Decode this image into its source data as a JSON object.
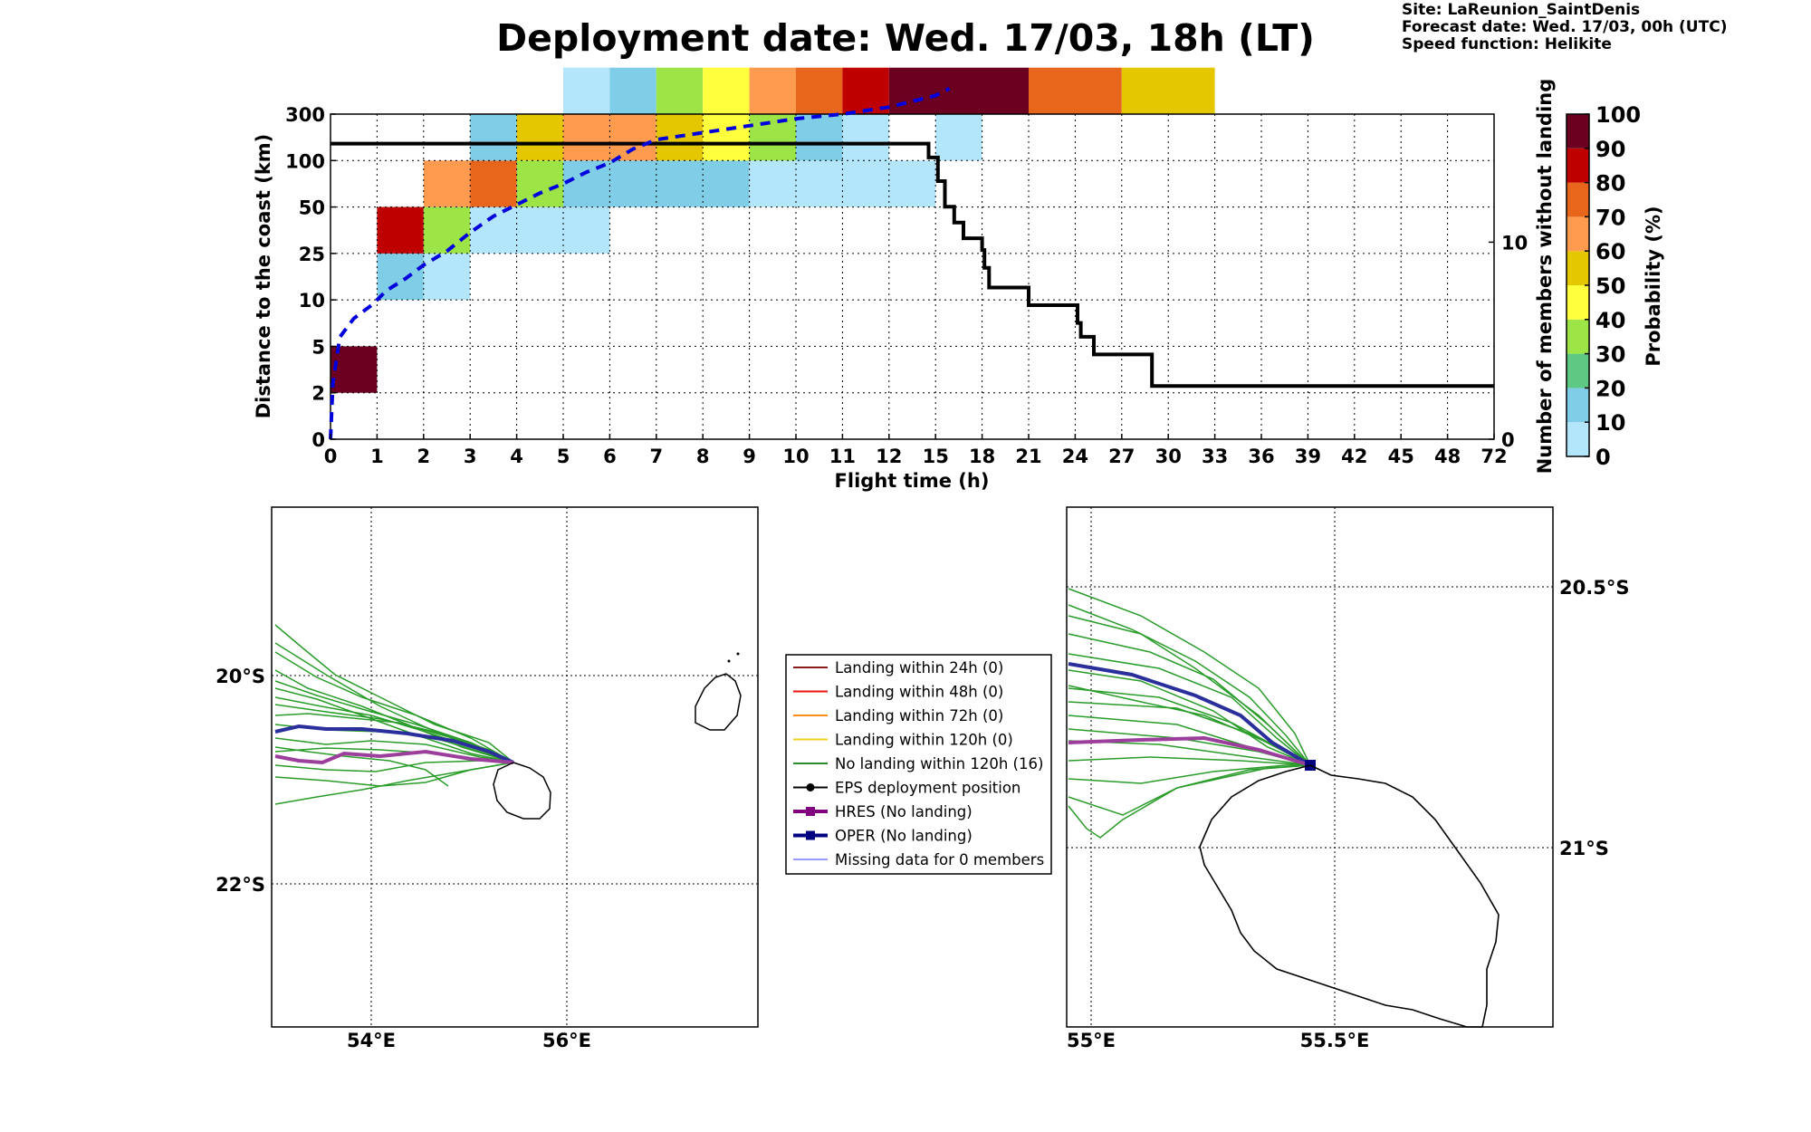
{
  "header": {
    "title": "Deployment date: Wed. 17/03, 18h (LT)",
    "meta": [
      "Site: LaReunion_SaintDenis",
      "Forecast date: Wed. 17/03, 00h (UTC)",
      "Speed function: Helikite"
    ]
  },
  "chart_data": [
    {
      "type": "heatmap",
      "xlabel": "Flight time (h)",
      "ylabel": "Distance to the coast (km)",
      "ylabel_right": "Number of members without landing",
      "colorbar_label": "Probability (%)",
      "x_ticks": [
        "0",
        "1",
        "2",
        "3",
        "4",
        "5",
        "6",
        "7",
        "8",
        "9",
        "10",
        "11",
        "12",
        "15",
        "18",
        "21",
        "24",
        "27",
        "30",
        "33",
        "36",
        "39",
        "42",
        "45",
        "48",
        "72"
      ],
      "y_ticks": [
        "0",
        "2",
        "5",
        "10",
        "25",
        "50",
        "100",
        "300"
      ],
      "right_ticks": [
        {
          "label": "0",
          "value": 0
        },
        {
          "label": "10",
          "value": 10
        }
      ],
      "right_ylim": [
        0,
        16.5
      ],
      "colorbar_ticks": [
        "0",
        "10",
        "20",
        "30",
        "40",
        "50",
        "60",
        "70",
        "80",
        "90",
        "100"
      ],
      "colorbar_colors": [
        "#b3e5fb",
        "#7fcde6",
        "#5dc982",
        "#9de447",
        "#ffff3d",
        "#e5c700",
        "#ff9b4f",
        "#e8661c",
        "#be0000",
        "#6b0020"
      ],
      "grid": true,
      "cells": [
        {
          "x": 0,
          "y": 1,
          "w": 1,
          "color": "#6b0020"
        },
        {
          "x": 1,
          "y": 3,
          "w": 1,
          "color": "#7fcde6"
        },
        {
          "x": 1,
          "y": 4,
          "w": 1,
          "color": "#be0000"
        },
        {
          "x": 2,
          "y": 3,
          "w": 1,
          "color": "#b3e5fb"
        },
        {
          "x": 2,
          "y": 4,
          "w": 1,
          "color": "#9de447"
        },
        {
          "x": 2,
          "y": 5,
          "w": 1,
          "color": "#ff9b4f"
        },
        {
          "x": 3,
          "y": 4,
          "w": 3,
          "color": "#b3e5fb"
        },
        {
          "x": 3,
          "y": 5,
          "w": 1,
          "color": "#e8661c"
        },
        {
          "x": 3,
          "y": 6,
          "w": 1,
          "color": "#7fcde6"
        },
        {
          "x": 4,
          "y": 5,
          "w": 1,
          "color": "#9de447"
        },
        {
          "x": 4,
          "y": 6,
          "w": 1,
          "color": "#e5c700"
        },
        {
          "x": 5,
          "y": 5,
          "w": 4,
          "color": "#7fcde6"
        },
        {
          "x": 5,
          "y": 6,
          "w": 2,
          "color": "#ff9b4f"
        },
        {
          "x": 5,
          "y": 7,
          "w": 1,
          "color": "#b3e5fb"
        },
        {
          "x": 6,
          "y": 7,
          "w": 1,
          "color": "#7fcde6"
        },
        {
          "x": 7,
          "y": 6,
          "w": 1,
          "color": "#e5c700"
        },
        {
          "x": 7,
          "y": 7,
          "w": 1,
          "color": "#9de447"
        },
        {
          "x": 8,
          "y": 6,
          "w": 1,
          "color": "#ffff3d"
        },
        {
          "x": 8,
          "y": 7,
          "w": 1,
          "color": "#ffff3d"
        },
        {
          "x": 9,
          "y": 5,
          "w": 4,
          "color": "#b3e5fb"
        },
        {
          "x": 9,
          "y": 6,
          "w": 1,
          "color": "#9de447"
        },
        {
          "x": 9,
          "y": 7,
          "w": 1,
          "color": "#ff9b4f"
        },
        {
          "x": 10,
          "y": 6,
          "w": 1,
          "color": "#7fcde6"
        },
        {
          "x": 10,
          "y": 7,
          "w": 1,
          "color": "#e8661c"
        },
        {
          "x": 11,
          "y": 6,
          "w": 1,
          "color": "#b3e5fb"
        },
        {
          "x": 11,
          "y": 7,
          "w": 1,
          "color": "#be0000"
        },
        {
          "x": 12,
          "y": 7,
          "w": 3,
          "color": "#6b0020"
        },
        {
          "x": 13,
          "y": 6,
          "w": 1,
          "color": "#b3e5fb"
        },
        {
          "x": 15,
          "y": 7,
          "w": 2,
          "color": "#e8661c"
        },
        {
          "x": 17,
          "y": 7,
          "w": 2,
          "color": "#e5c700"
        }
      ],
      "members_line": [
        [
          0,
          15
        ],
        [
          12.85,
          15
        ],
        [
          12.85,
          14.3
        ],
        [
          13.05,
          14.3
        ],
        [
          13.05,
          13.1
        ],
        [
          13.2,
          13.1
        ],
        [
          13.2,
          11.8
        ],
        [
          13.4,
          11.8
        ],
        [
          13.4,
          11
        ],
        [
          13.6,
          11
        ],
        [
          13.6,
          10.2
        ],
        [
          14,
          10.2
        ],
        [
          14,
          9.6
        ],
        [
          14.05,
          9.6
        ],
        [
          14.05,
          8.7
        ],
        [
          14.15,
          8.7
        ],
        [
          14.15,
          7.7
        ],
        [
          15,
          7.7
        ],
        [
          15,
          6.8
        ],
        [
          16.05,
          6.8
        ],
        [
          16.05,
          5.9
        ],
        [
          16.12,
          5.9
        ],
        [
          16.12,
          5.2
        ],
        [
          16.4,
          5.2
        ],
        [
          16.4,
          4.3
        ],
        [
          17.65,
          4.3
        ],
        [
          17.65,
          2.7
        ],
        [
          25,
          2.7
        ]
      ],
      "median_curve": [
        [
          0,
          0
        ],
        [
          0.05,
          1.2
        ],
        [
          0.2,
          2.2
        ],
        [
          0.5,
          2.6
        ],
        [
          0.9,
          2.9
        ],
        [
          1.2,
          3.2
        ],
        [
          1.6,
          3.45
        ],
        [
          2,
          3.75
        ],
        [
          2.5,
          4.05
        ],
        [
          3,
          4.45
        ],
        [
          3.5,
          4.8
        ],
        [
          4,
          5.05
        ],
        [
          4.5,
          5.3
        ],
        [
          5,
          5.5
        ],
        [
          5.5,
          5.75
        ],
        [
          6,
          5.95
        ],
        [
          6.5,
          6.25
        ],
        [
          7,
          6.45
        ],
        [
          8,
          6.6
        ],
        [
          9,
          6.75
        ],
        [
          10,
          6.9
        ],
        [
          11,
          7.0
        ],
        [
          12,
          7.15
        ],
        [
          13,
          7.4
        ],
        [
          13.3,
          7.55
        ]
      ]
    },
    {
      "type": "map",
      "lat_labels": [
        "20°S",
        "22°S"
      ],
      "lon_labels": [
        "54°E",
        "56°E"
      ]
    },
    {
      "type": "map",
      "lat_labels": [
        "20.5°S",
        "21°S"
      ],
      "lon_labels": [
        "55°E",
        "55.5°E"
      ]
    }
  ],
  "legend": {
    "items": [
      {
        "label": "Landing within 24h (0)",
        "color": "#8b1a1a",
        "kind": "line"
      },
      {
        "label": "Landing within 48h (0)",
        "color": "#ee1111",
        "kind": "line"
      },
      {
        "label": "Landing within 72h (0)",
        "color": "#ff8c1a",
        "kind": "line"
      },
      {
        "label": "Landing within 120h (0)",
        "color": "#f2d11c",
        "kind": "line"
      },
      {
        "label": "No landing within 120h (16)",
        "color": "#2a8c2a",
        "kind": "line"
      },
      {
        "label": "EPS deployment position",
        "color": "#000000",
        "kind": "dotline"
      },
      {
        "label": "HRES (No landing)",
        "color": "#800080",
        "kind": "squareline"
      },
      {
        "label": "OPER (No landing)",
        "color": "#000080",
        "kind": "squareline"
      },
      {
        "label": "Missing data for 0 members",
        "color": "#3333ff",
        "kind": "thinline"
      }
    ]
  }
}
